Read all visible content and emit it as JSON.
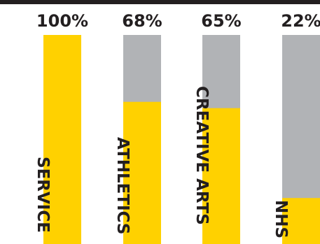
{
  "colors": {
    "fill": "#FFD100",
    "track": "#B1B3B6",
    "text": "#231F20",
    "top_bar": "#231F20"
  },
  "chart_data": {
    "type": "bar",
    "categories": [
      "SERVICE",
      "ATHLETICS",
      "CREATIVE ARTS",
      "NHS"
    ],
    "values": [
      100,
      68,
      65,
      22
    ],
    "value_labels": [
      "100%",
      "68%",
      "65%",
      "22%"
    ],
    "ylim": [
      0,
      100
    ],
    "grid": false,
    "legend": "none"
  }
}
